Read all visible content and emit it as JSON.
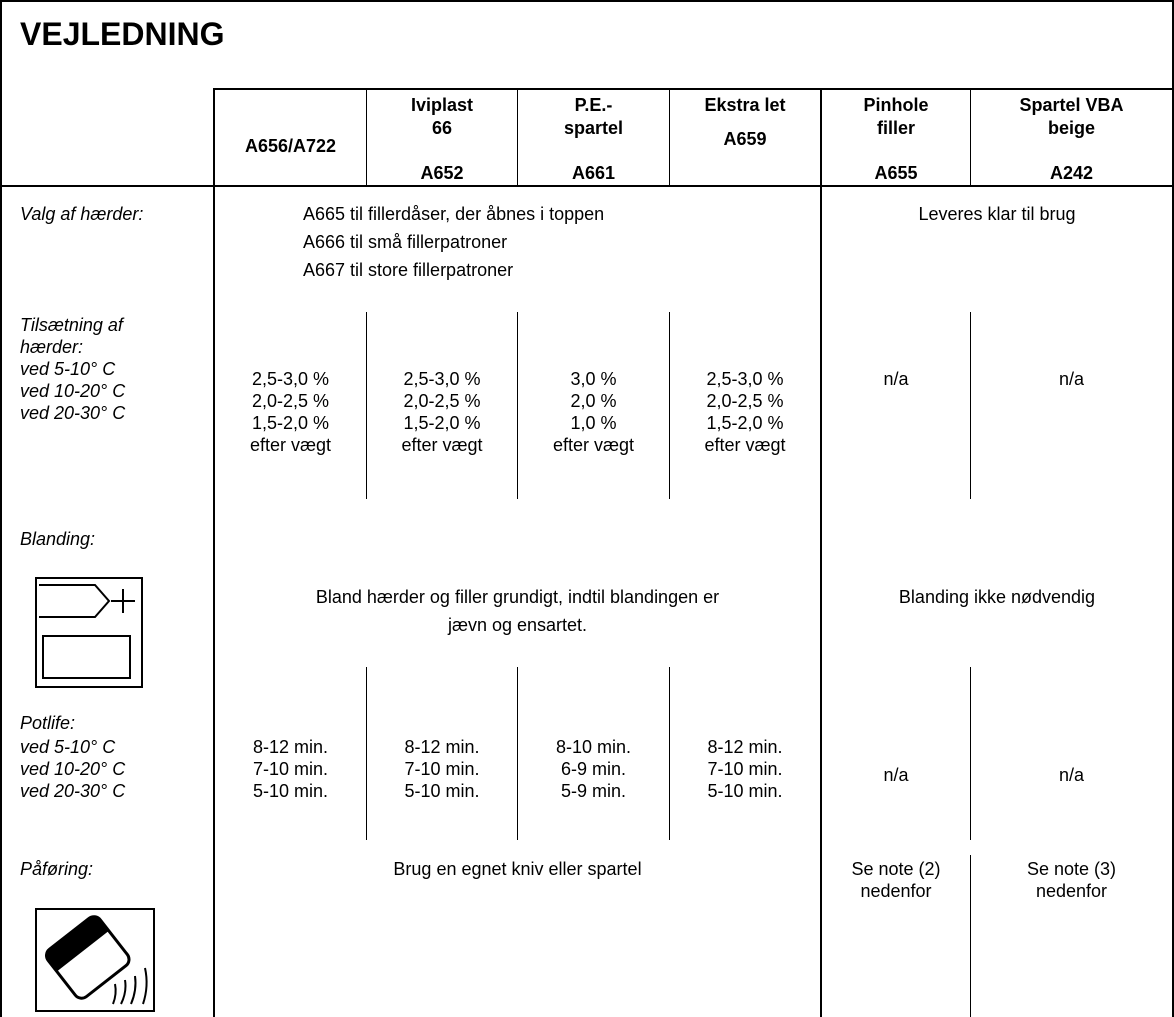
{
  "title": "VEJLEDNING",
  "columns": [
    {
      "lines": [
        "A656/A722"
      ],
      "code": ""
    },
    {
      "lines": [
        "Iviplast",
        "66"
      ],
      "code": "A652"
    },
    {
      "lines": [
        "P.E.-",
        "spartel"
      ],
      "code": "A661"
    },
    {
      "lines": [
        "Ekstra let"
      ],
      "code": "A659"
    },
    {
      "lines": [
        "Pinhole",
        "filler"
      ],
      "code": "A655"
    },
    {
      "lines": [
        "Spartel VBA",
        "beige"
      ],
      "code": "A242"
    }
  ],
  "rows": {
    "hardener_choice": {
      "label": "Valg af hærder:",
      "lines": [
        "A665 til fillerdåser, der åbnes i toppen",
        "A666 til små fillerpatroner",
        "A667 til store fillerpatroner"
      ],
      "ready": "Leveres klar til brug"
    },
    "addition": {
      "label": [
        "Tilsætning af",
        "hærder:"
      ],
      "temps": [
        "ved   5-10° C",
        "ved 10-20° C",
        "ved 20-30° C"
      ],
      "values": [
        [
          "2,5-3,0 %",
          "2,0-2,5 %",
          "1,5-2,0 %",
          "efter vægt"
        ],
        [
          "2,5-3,0 %",
          "2,0-2,5 %",
          "1,5-2,0 %",
          "efter vægt"
        ],
        [
          "3,0 %",
          "2,0 %",
          "1,0 %",
          "efter vægt"
        ],
        [
          "2,5-3,0 %",
          "2,0-2,5 %",
          "1,5-2,0 %",
          "efter vægt"
        ]
      ],
      "na_pinhole": "n/a",
      "na_spartel": "n/a"
    },
    "mixing": {
      "label": "Blanding:",
      "lines": [
        "Bland hærder og filler grundigt, indtil blandingen er",
        "jævn og ensartet."
      ],
      "not_needed": "Blanding ikke nødvendig",
      "icon": "mixing-icon"
    },
    "potlife": {
      "label": "Potlife:",
      "temps": [
        "ved   5-10° C",
        "ved 10-20° C",
        "ved 20-30° C"
      ],
      "values": [
        [
          "8-12 min.",
          "7-10 min.",
          "5-10 min."
        ],
        [
          "8-12 min.",
          "7-10 min.",
          "5-10 min."
        ],
        [
          "8-10 min.",
          "6-9 min.",
          "5-9 min."
        ],
        [
          "8-12 min.",
          "7-10 min.",
          "5-10 min."
        ]
      ],
      "na_pinhole": "n/a",
      "na_spartel": "n/a"
    },
    "application": {
      "label": "Påføring:",
      "text": "Brug en egnet kniv eller spartel",
      "note_pinhole": [
        "Se note (2)",
        "nedenfor"
      ],
      "note_spartel": [
        "Se note (3)",
        "nedenfor"
      ],
      "icon": "spatula-icon"
    }
  }
}
